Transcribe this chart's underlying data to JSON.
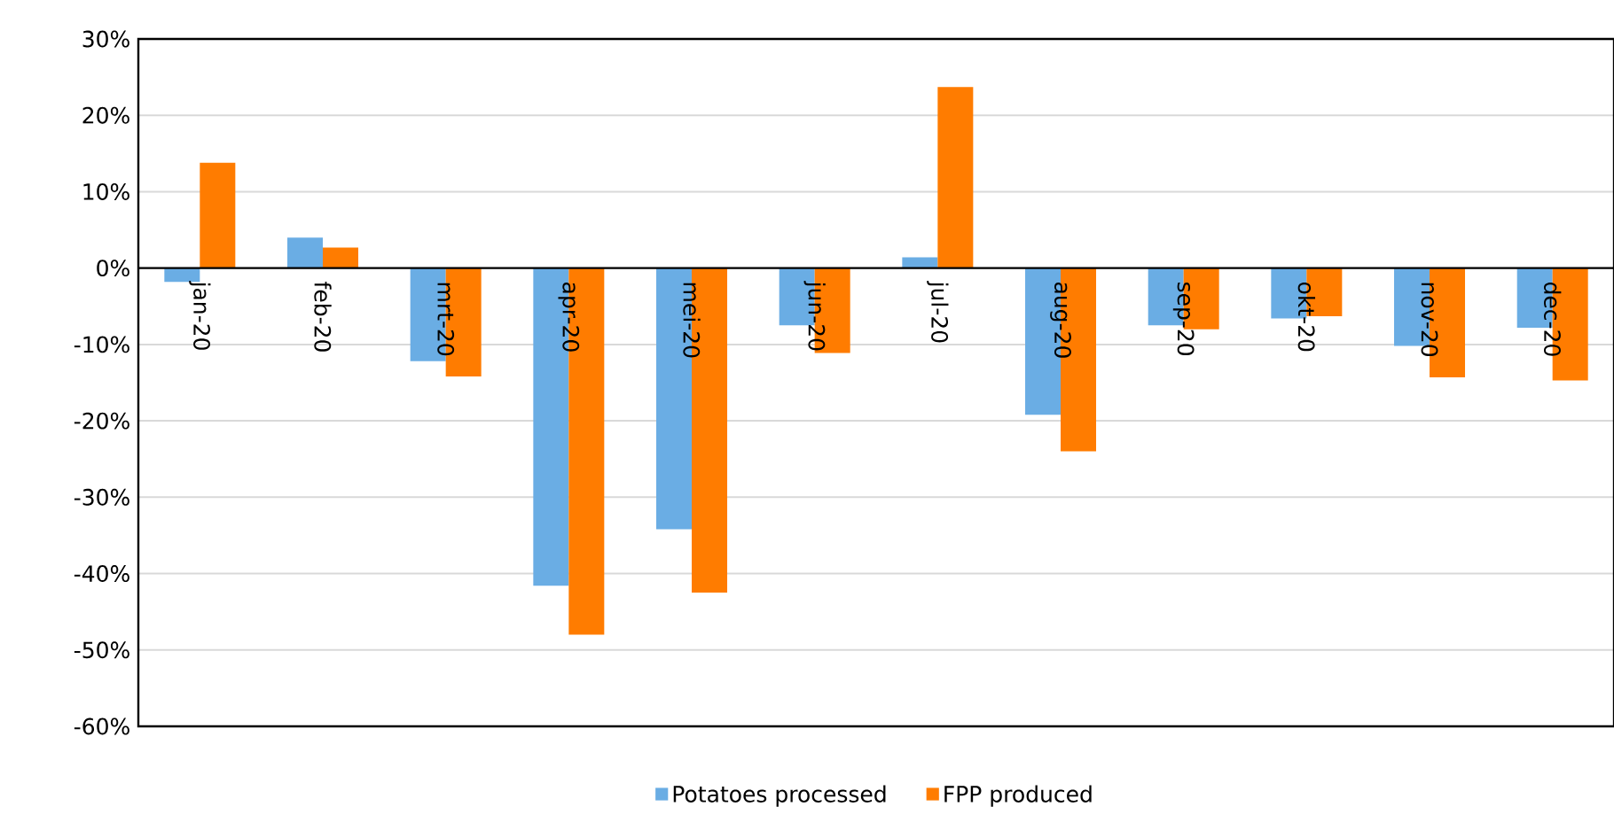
{
  "chart_data": {
    "type": "bar",
    "categories": [
      "jan-20",
      "feb-20",
      "mrt-20",
      "apr-20",
      "mei-20",
      "jun-20",
      "jul-20",
      "aug-20",
      "sep-20",
      "okt-20",
      "nov-20",
      "dec-20"
    ],
    "series": [
      {
        "name": "Potatoes processed",
        "color": "#6aade4",
        "values": [
          -1.8,
          4.0,
          -12.2,
          -41.6,
          -34.2,
          -7.5,
          1.4,
          -19.2,
          -7.5,
          -6.6,
          -10.2,
          -7.8
        ]
      },
      {
        "name": "FPP produced",
        "color": "#ff7c00",
        "values": [
          13.8,
          2.7,
          -14.2,
          -48.0,
          -42.5,
          -11.1,
          23.7,
          -24.0,
          -8.0,
          -6.3,
          -14.3,
          -14.7
        ]
      }
    ],
    "ylim": [
      -60,
      30
    ],
    "yticks": [
      {
        "value": 30,
        "label": "30%"
      },
      {
        "value": 20,
        "label": "20%"
      },
      {
        "value": 10,
        "label": "10%"
      },
      {
        "value": 0,
        "label": "0%"
      },
      {
        "value": -10,
        "label": "-10%"
      },
      {
        "value": -20,
        "label": "-20%"
      },
      {
        "value": -30,
        "label": "-30%"
      },
      {
        "value": -40,
        "label": "-40%"
      },
      {
        "value": -50,
        "label": "-50%"
      },
      {
        "value": -60,
        "label": "-60%"
      }
    ],
    "grid": "y",
    "legend": "bottom"
  }
}
